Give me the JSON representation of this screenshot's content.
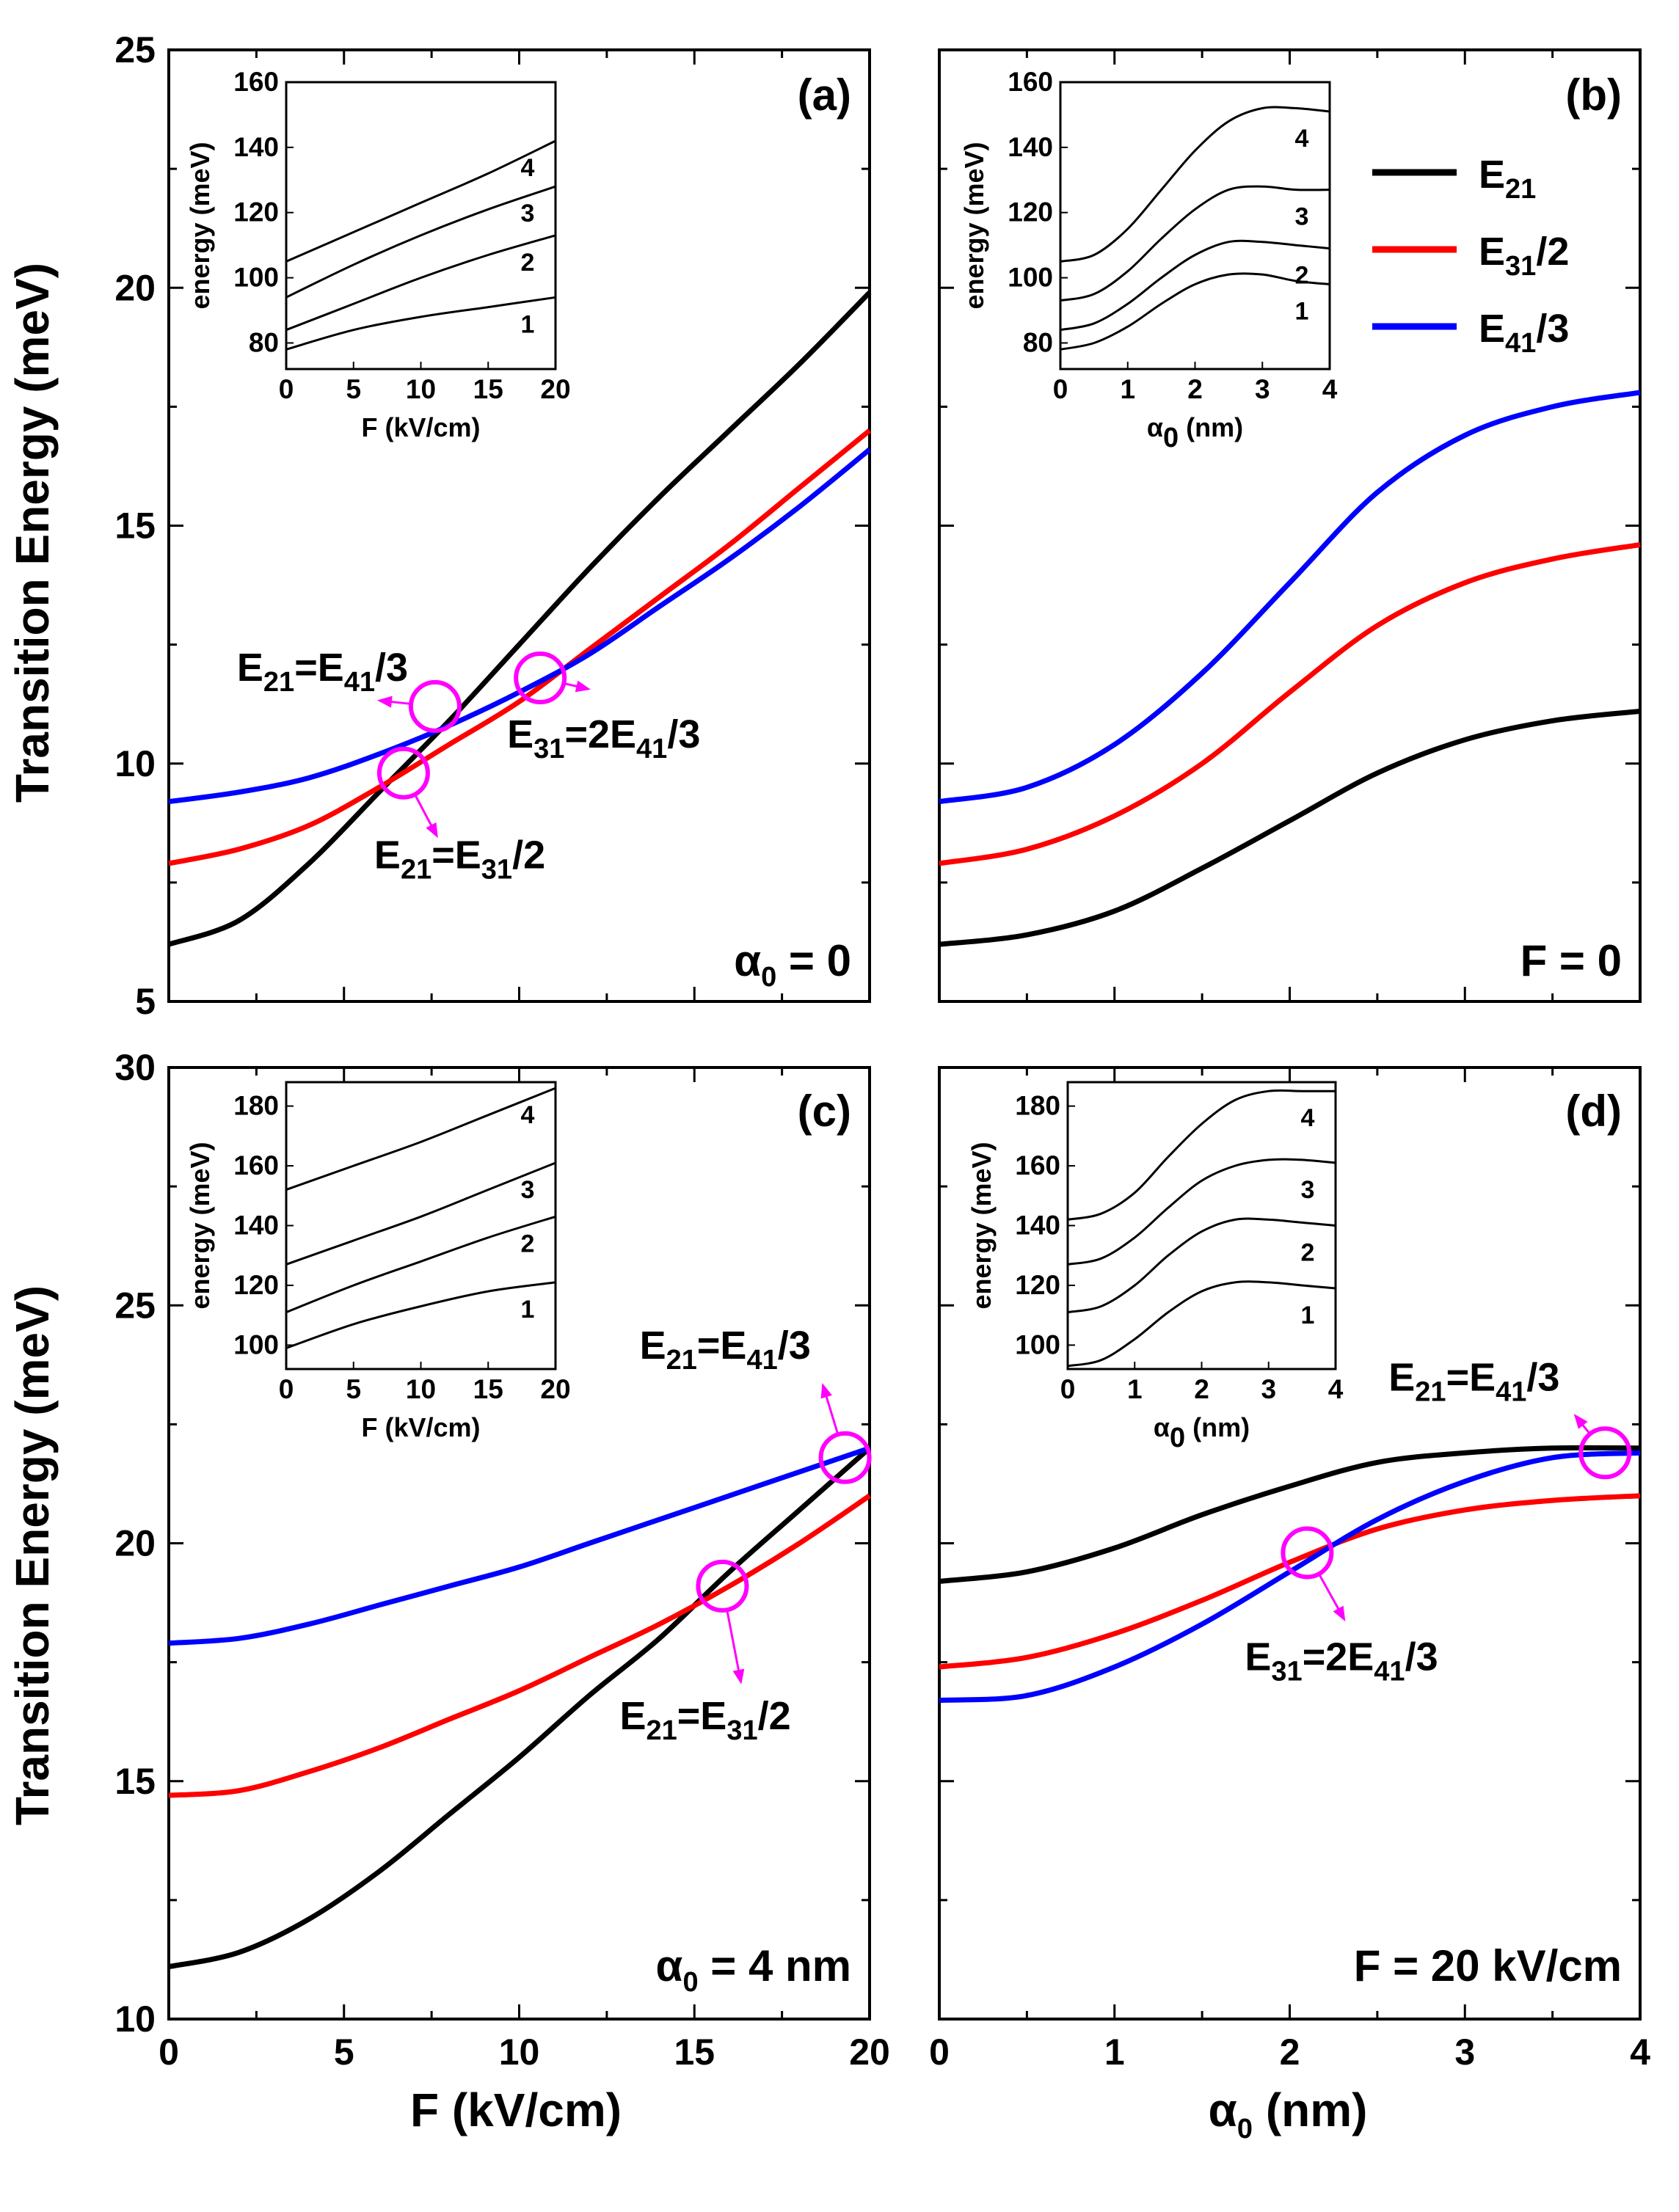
{
  "figure": {
    "ylabel": "Transition Energy (meV)",
    "bottom_xlabels": {
      "c": "F (kV/cm)",
      "d_symbol": "α",
      "d_sub": "0",
      "d_rest": " (nm)"
    },
    "legend": [
      {
        "main": "E",
        "sub": "21",
        "rest": "",
        "color": "#000000"
      },
      {
        "main": "E",
        "sub": "31",
        "rest": "/2",
        "color": "#ff0000"
      },
      {
        "main": "E",
        "sub": "41",
        "rest": "/3",
        "color": "#0000ff"
      }
    ]
  },
  "colors": {
    "E21": "#000000",
    "E31_2": "#ff0000",
    "E41_3": "#0000ff",
    "marker": "#ff00ff",
    "inset": "#000000"
  },
  "chart_data": [
    {
      "panel": "a",
      "type": "line",
      "label": "(a)",
      "condition": {
        "symbol": "α",
        "sub": "0",
        "rest": " = 0"
      },
      "xlim": [
        0,
        20
      ],
      "ylim": [
        5,
        25
      ],
      "yticks": [
        5,
        10,
        15,
        20,
        25
      ],
      "xticks": [
        0,
        5,
        10,
        15,
        20
      ],
      "ytick_labels": [
        "5",
        "10",
        "15",
        "20",
        "25"
      ],
      "xtick_labels": [],
      "x": [
        0,
        2,
        4,
        6,
        8,
        10,
        12,
        14,
        16,
        18,
        20
      ],
      "series": [
        {
          "name": "E21",
          "values": [
            6.2,
            6.7,
            7.9,
            9.4,
            10.9,
            12.5,
            14.1,
            15.6,
            17.0,
            18.4,
            19.9
          ]
        },
        {
          "name": "E31/2",
          "values": [
            7.9,
            8.2,
            8.7,
            9.5,
            10.4,
            11.3,
            12.4,
            13.5,
            14.6,
            15.8,
            17.0
          ]
        },
        {
          "name": "E41/3",
          "values": [
            9.2,
            9.4,
            9.7,
            10.2,
            10.8,
            11.5,
            12.3,
            13.3,
            14.3,
            15.4,
            16.6
          ]
        }
      ],
      "annotations": [
        {
          "label_main": "E",
          "label_sub": "21",
          "label_rest": "=E",
          "label_sub2": "41",
          "label_rest2": "/3",
          "x": 7.6,
          "y": 11.2
        },
        {
          "label_main": "E",
          "label_sub": "31",
          "label_rest": "=2E",
          "label_sub2": "41",
          "label_rest2": "/3",
          "x": 10.6,
          "y": 11.8
        },
        {
          "label_main": "E",
          "label_sub": "21",
          "label_rest": "=E",
          "label_sub2": "31",
          "label_rest2": "/2",
          "x": 6.7,
          "y": 9.8
        }
      ],
      "inset": {
        "xlabel": "F (kV/cm)",
        "ylabel": "energy (meV)",
        "xlim": [
          0,
          20
        ],
        "ylim": [
          72,
          160
        ],
        "xticks": [
          0,
          5,
          10,
          15,
          20
        ],
        "yticks": [
          80,
          100,
          120,
          140,
          160
        ],
        "xtick_labels": [
          "0",
          "5",
          "10",
          "15",
          "20"
        ],
        "ytick_labels": [
          "80",
          "100",
          "120",
          "140",
          "160"
        ],
        "x": [
          0,
          5,
          10,
          15,
          20
        ],
        "series": [
          {
            "name": "1",
            "values": [
              78,
              84,
              88,
              91,
              94
            ]
          },
          {
            "name": "2",
            "values": [
              84,
              92,
              100,
              107,
              113
            ]
          },
          {
            "name": "3",
            "values": [
              94,
              104,
              113,
              121,
              128
            ]
          },
          {
            "name": "4",
            "values": [
              105,
              114,
              123,
              132,
              142
            ]
          }
        ]
      }
    },
    {
      "panel": "b",
      "type": "line",
      "label": "(b)",
      "condition": {
        "symbol": "",
        "sub": "",
        "rest": "F = 0"
      },
      "xlim": [
        0,
        4
      ],
      "ylim": [
        5,
        25
      ],
      "yticks": [
        5,
        10,
        15,
        20,
        25
      ],
      "xticks": [
        0,
        1,
        2,
        3,
        4
      ],
      "ytick_labels": [],
      "xtick_labels": [],
      "x": [
        0,
        0.5,
        1.0,
        1.5,
        2.0,
        2.5,
        3.0,
        3.5,
        4.0
      ],
      "series": [
        {
          "name": "E21",
          "values": [
            6.2,
            6.4,
            6.9,
            7.8,
            8.8,
            9.8,
            10.5,
            10.9,
            11.1
          ]
        },
        {
          "name": "E31/2",
          "values": [
            7.9,
            8.2,
            8.9,
            10.0,
            11.5,
            12.9,
            13.8,
            14.3,
            14.6
          ]
        },
        {
          "name": "E41/3",
          "values": [
            9.2,
            9.5,
            10.4,
            11.9,
            13.8,
            15.7,
            16.9,
            17.5,
            17.8
          ]
        }
      ],
      "annotations": [],
      "inset": {
        "xlabel_symbol": "α",
        "xlabel_sub": "0",
        "xlabel_rest": " (nm)",
        "ylabel": "energy (meV)",
        "xlim": [
          0,
          4
        ],
        "ylim": [
          72,
          160
        ],
        "xticks": [
          0,
          1,
          2,
          3,
          4
        ],
        "yticks": [
          80,
          100,
          120,
          140,
          160
        ],
        "xtick_labels": [
          "0",
          "1",
          "2",
          "3",
          "4"
        ],
        "ytick_labels": [
          "80",
          "100",
          "120",
          "140",
          "160"
        ],
        "x": [
          0,
          0.5,
          1.0,
          1.5,
          2.0,
          2.5,
          3.0,
          3.5,
          4.0
        ],
        "series": [
          {
            "name": "1",
            "values": [
              78,
              80,
              85,
              92,
              98,
              101,
              101,
              99,
              98
            ]
          },
          {
            "name": "2",
            "values": [
              84,
              86,
              92,
              100,
              107,
              111,
              111,
              110,
              109
            ]
          },
          {
            "name": "3",
            "values": [
              93,
              95,
              102,
              112,
              121,
              127,
              128,
              127,
              127
            ]
          },
          {
            "name": "4",
            "values": [
              105,
              107,
              115,
              127,
              139,
              148,
              152,
              152,
              151
            ]
          }
        ]
      }
    },
    {
      "panel": "c",
      "type": "line",
      "label": "(c)",
      "condition": {
        "symbol": "α",
        "sub": "0",
        "rest": " = 4 nm"
      },
      "xlim": [
        0,
        20
      ],
      "ylim": [
        10,
        30
      ],
      "yticks": [
        10,
        15,
        20,
        25,
        30
      ],
      "xticks": [
        0,
        5,
        10,
        15,
        20
      ],
      "ytick_labels": [
        "10",
        "15",
        "20",
        "25",
        "30"
      ],
      "xtick_labels": [
        "0",
        "5",
        "10",
        "15",
        "20"
      ],
      "x": [
        0,
        2,
        4,
        6,
        8,
        10,
        12,
        14,
        16,
        18,
        20
      ],
      "series": [
        {
          "name": "E21",
          "values": [
            11.1,
            11.4,
            12.1,
            13.1,
            14.3,
            15.5,
            16.8,
            18.0,
            19.4,
            20.7,
            22.0
          ]
        },
        {
          "name": "E31/2",
          "values": [
            14.7,
            14.8,
            15.2,
            15.7,
            16.3,
            16.9,
            17.6,
            18.3,
            19.1,
            20.0,
            21.0
          ]
        },
        {
          "name": "E41/3",
          "values": [
            17.9,
            18.0,
            18.3,
            18.7,
            19.1,
            19.5,
            20.0,
            20.5,
            21.0,
            21.5,
            22.0
          ]
        }
      ],
      "annotations": [
        {
          "label_main": "E",
          "label_sub": "21",
          "label_rest": "=E",
          "label_sub2": "41",
          "label_rest2": "/3",
          "x": 19.3,
          "y": 21.8
        },
        {
          "label_main": "E",
          "label_sub": "21",
          "label_rest": "=E",
          "label_sub2": "31",
          "label_rest2": "/2",
          "x": 15.8,
          "y": 19.1
        }
      ],
      "inset": {
        "xlabel": "F (kV/cm)",
        "ylabel": "energy (meV)",
        "xlim": [
          0,
          20
        ],
        "ylim": [
          92,
          188
        ],
        "xticks": [
          0,
          5,
          10,
          15,
          20
        ],
        "yticks": [
          100,
          120,
          140,
          160,
          180
        ],
        "xtick_labels": [
          "0",
          "5",
          "10",
          "15",
          "20"
        ],
        "ytick_labels": [
          "100",
          "120",
          "140",
          "160",
          "180"
        ],
        "x": [
          0,
          5,
          10,
          15,
          20
        ],
        "series": [
          {
            "name": "1",
            "values": [
              99,
              107,
              113,
              118,
              121
            ]
          },
          {
            "name": "2",
            "values": [
              111,
              120,
              128,
              136,
              143
            ]
          },
          {
            "name": "3",
            "values": [
              127,
              135,
              143,
              152,
              161
            ]
          },
          {
            "name": "4",
            "values": [
              152,
              160,
              168,
              177,
              186
            ]
          }
        ]
      }
    },
    {
      "panel": "d",
      "type": "line",
      "label": "(d)",
      "condition": {
        "symbol": "",
        "sub": "",
        "rest": "F = 20 kV/cm"
      },
      "xlim": [
        0,
        4
      ],
      "ylim": [
        10,
        30
      ],
      "yticks": [
        10,
        15,
        20,
        25,
        30
      ],
      "xticks": [
        0,
        1,
        2,
        3,
        4
      ],
      "ytick_labels": [],
      "xtick_labels": [
        "0",
        "1",
        "2",
        "3",
        "4"
      ],
      "x": [
        0,
        0.5,
        1.0,
        1.5,
        2.0,
        2.5,
        3.0,
        3.5,
        4.0
      ],
      "series": [
        {
          "name": "E21",
          "values": [
            19.2,
            19.4,
            19.9,
            20.6,
            21.2,
            21.7,
            21.9,
            22.0,
            22.0
          ]
        },
        {
          "name": "E31/2",
          "values": [
            17.4,
            17.6,
            18.1,
            18.8,
            19.6,
            20.3,
            20.7,
            20.9,
            21.0
          ]
        },
        {
          "name": "E41/3",
          "values": [
            16.7,
            16.8,
            17.4,
            18.3,
            19.4,
            20.5,
            21.3,
            21.8,
            21.9
          ]
        }
      ],
      "annotations": [
        {
          "label_main": "E",
          "label_sub": "21",
          "label_rest": "=E",
          "label_sub2": "41",
          "label_rest2": "/3",
          "x": 3.8,
          "y": 21.9
        },
        {
          "label_main": "E",
          "label_sub": "31",
          "label_rest": "=2E",
          "label_sub2": "41",
          "label_rest2": "/3",
          "x": 2.1,
          "y": 19.8
        }
      ],
      "inset": {
        "xlabel_symbol": "α",
        "xlabel_sub": "0",
        "xlabel_rest": " (nm)",
        "ylabel": "energy (meV)",
        "xlim": [
          0,
          4
        ],
        "ylim": [
          92,
          188
        ],
        "xticks": [
          0,
          1,
          2,
          3,
          4
        ],
        "yticks": [
          100,
          120,
          140,
          160,
          180
        ],
        "xtick_labels": [
          "0",
          "1",
          "2",
          "3",
          "4"
        ],
        "ytick_labels": [
          "100",
          "120",
          "140",
          "160",
          "180"
        ],
        "x": [
          0,
          0.5,
          1.0,
          1.5,
          2.0,
          2.5,
          3.0,
          3.5,
          4.0
        ],
        "series": [
          {
            "name": "1",
            "values": [
              93,
              95,
              102,
              111,
              118,
              121,
              121,
              120,
              119
            ]
          },
          {
            "name": "2",
            "values": [
              111,
              113,
              120,
              130,
              138,
              142,
              142,
              141,
              140
            ]
          },
          {
            "name": "3",
            "values": [
              127,
              129,
              136,
              146,
              155,
              160,
              162,
              162,
              161
            ]
          },
          {
            "name": "4",
            "values": [
              142,
              144,
              151,
              163,
              174,
              182,
              185,
              185,
              185
            ]
          }
        ]
      }
    }
  ]
}
